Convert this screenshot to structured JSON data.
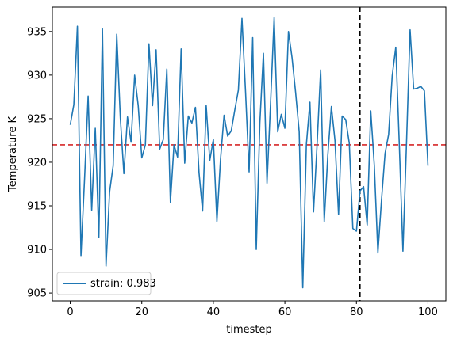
{
  "chart_data": {
    "type": "line",
    "title": "",
    "xlabel": "timestep",
    "ylabel": "Temperature K",
    "xlim": [
      -5,
      105
    ],
    "ylim": [
      904.1,
      937.8
    ],
    "xticks": [
      0,
      20,
      40,
      60,
      80,
      100
    ],
    "yticks": [
      905,
      910,
      915,
      920,
      925,
      930,
      935
    ],
    "grid": false,
    "legend_position": "lower-left",
    "series": [
      {
        "name": "strain: 0.983",
        "color": "#1f77b4",
        "x": [
          0,
          1,
          2,
          3,
          4,
          5,
          6,
          7,
          8,
          9,
          10,
          11,
          12,
          13,
          14,
          15,
          16,
          17,
          18,
          19,
          20,
          21,
          22,
          23,
          24,
          25,
          26,
          27,
          28,
          29,
          30,
          31,
          32,
          33,
          34,
          35,
          36,
          37,
          38,
          39,
          40,
          41,
          42,
          43,
          44,
          45,
          46,
          47,
          48,
          49,
          50,
          51,
          52,
          53,
          54,
          55,
          56,
          57,
          58,
          59,
          60,
          61,
          62,
          63,
          64,
          65,
          66,
          67,
          68,
          69,
          70,
          71,
          72,
          73,
          74,
          75,
          76,
          77,
          78,
          79,
          80,
          81,
          82,
          83,
          84,
          85,
          86,
          87,
          88,
          89,
          90,
          91,
          92,
          93,
          94,
          95,
          96,
          97,
          98,
          99,
          100
        ],
        "values": [
          924.3,
          926.6,
          935.6,
          909.3,
          918.1,
          927.6,
          914.5,
          923.9,
          911.4,
          935.3,
          908.1,
          916.6,
          919.6,
          934.7,
          925.1,
          918.7,
          925.2,
          922.3,
          930.0,
          926.5,
          920.5,
          922.0,
          933.6,
          926.5,
          932.9,
          921.5,
          922.6,
          930.7,
          915.4,
          922.0,
          920.6,
          933.0,
          919.9,
          925.3,
          924.5,
          926.3,
          918.8,
          914.4,
          926.5,
          920.2,
          922.6,
          913.2,
          920.3,
          925.4,
          923.0,
          923.6,
          926.0,
          928.3,
          936.5,
          928.1,
          918.9,
          934.3,
          910.0,
          924.5,
          932.5,
          917.6,
          926.8,
          936.6,
          923.5,
          925.5,
          923.9,
          935.0,
          932.0,
          928.0,
          923.5,
          905.6,
          922.0,
          926.9,
          914.3,
          922.0,
          930.6,
          913.2,
          920.8,
          926.4,
          922.5,
          914.0,
          925.3,
          924.9,
          922.2,
          912.4,
          912.1,
          916.7,
          917.2,
          912.8,
          925.9,
          919.6,
          909.6,
          915.6,
          921.0,
          923.2,
          929.9,
          933.2,
          921.9,
          909.8,
          922.2,
          935.2,
          928.4,
          928.5,
          928.7,
          928.2,
          919.6
        ]
      }
    ],
    "annotations": [
      {
        "kind": "hline",
        "value": 922,
        "color": "#d62728",
        "style": "dashed"
      },
      {
        "kind": "vline",
        "value": 81,
        "color": "#000000",
        "style": "dashed"
      }
    ]
  }
}
